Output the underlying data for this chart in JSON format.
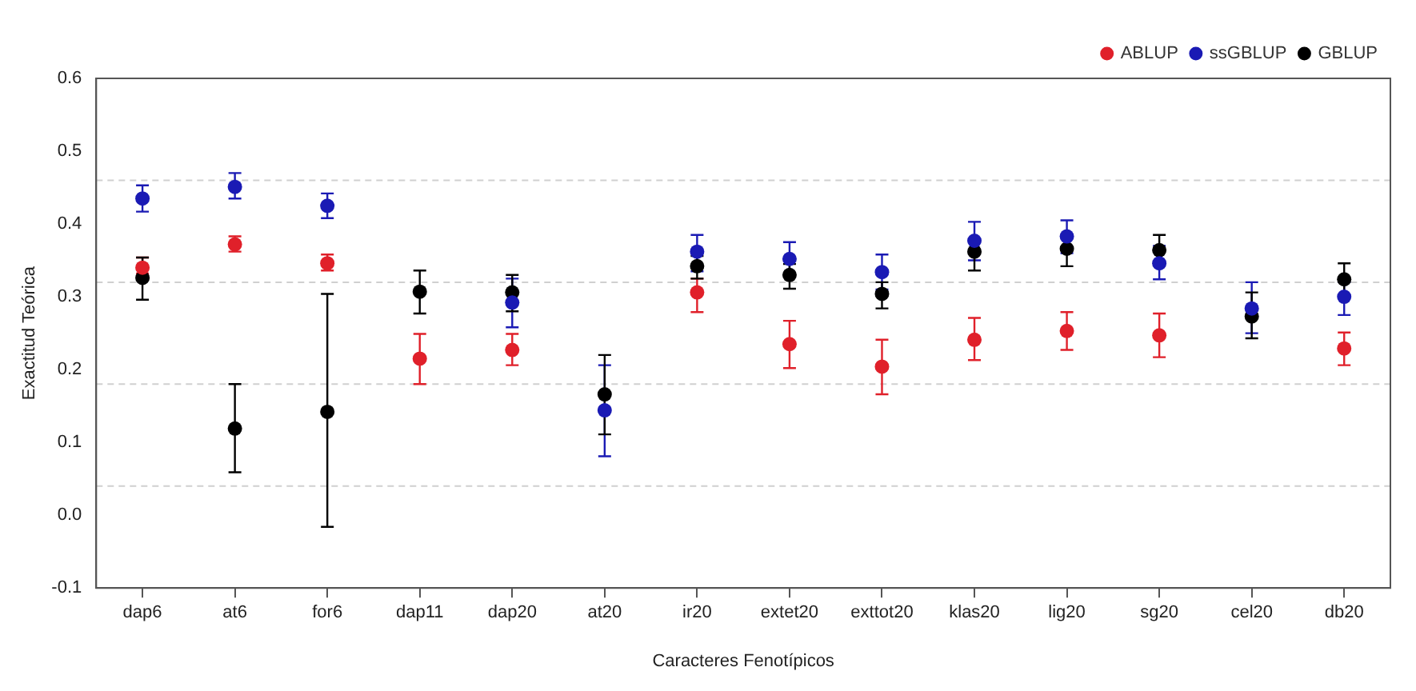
{
  "chart_data": {
    "type": "scatter",
    "xlabel": "Caracteres Fenotípicos",
    "ylabel": "Exactitud Teórica",
    "categories": [
      "dap6",
      "at6",
      "for6",
      "dap11",
      "dap20",
      "at20",
      "ir20",
      "extet20",
      "exttot20",
      "klas20",
      "lig20",
      "sg20",
      "cel20",
      "db20"
    ],
    "series": [
      {
        "name": "ABLUP",
        "color": "#e0202a",
        "values": [
          0.34,
          0.372,
          0.346,
          0.215,
          0.227,
          null,
          0.306,
          0.235,
          0.204,
          0.241,
          0.253,
          0.247,
          null,
          0.229
        ],
        "errors": [
          [
            0.332,
            0.354
          ],
          [
            0.362,
            0.383
          ],
          [
            0.336,
            0.358
          ],
          [
            0.18,
            0.249
          ],
          [
            0.206,
            0.249
          ],
          null,
          [
            0.279,
            0.325
          ],
          [
            0.202,
            0.267
          ],
          [
            0.166,
            0.241
          ],
          [
            0.213,
            0.271
          ],
          [
            0.227,
            0.279
          ],
          [
            0.217,
            0.277
          ],
          null,
          [
            0.206,
            0.251
          ]
        ]
      },
      {
        "name": "ssGBLUP",
        "color": "#1a1ab4",
        "values": [
          0.435,
          0.451,
          0.425,
          null,
          0.292,
          0.144,
          0.362,
          0.352,
          0.334,
          0.377,
          0.383,
          0.346,
          0.284,
          0.3
        ],
        "errors": [
          [
            0.417,
            0.453
          ],
          [
            0.435,
            0.47
          ],
          [
            0.408,
            0.442
          ],
          null,
          [
            0.258,
            0.325
          ],
          [
            0.081,
            0.206
          ],
          [
            0.335,
            0.385
          ],
          [
            0.33,
            0.375
          ],
          [
            0.31,
            0.358
          ],
          [
            0.35,
            0.403
          ],
          [
            0.36,
            0.405
          ],
          [
            0.324,
            0.37
          ],
          [
            0.25,
            0.32
          ],
          [
            0.275,
            0.32
          ]
        ]
      },
      {
        "name": "GBLUP",
        "color": "#000000",
        "values": [
          0.326,
          0.119,
          0.142,
          0.307,
          0.306,
          0.166,
          0.342,
          0.33,
          0.304,
          0.362,
          0.366,
          0.364,
          0.273,
          0.324
        ],
        "errors": [
          [
            0.296,
            0.354
          ],
          [
            0.059,
            0.18
          ],
          [
            -0.016,
            0.304
          ],
          [
            0.277,
            0.336
          ],
          [
            0.28,
            0.33
          ],
          [
            0.111,
            0.22
          ],
          [
            0.325,
            0.356
          ],
          [
            0.311,
            0.345
          ],
          [
            0.284,
            0.32
          ],
          [
            0.336,
            0.38
          ],
          [
            0.342,
            0.385
          ],
          [
            0.345,
            0.385
          ],
          [
            0.243,
            0.306
          ],
          [
            0.3,
            0.346
          ]
        ]
      }
    ],
    "ylim": [
      -0.1,
      0.6
    ],
    "yticks": [
      -0.1,
      {
        "value": 0,
        "label": "0.0"
      },
      0.1,
      0.2,
      0.3,
      0.4,
      0.5,
      0.6
    ],
    "ref_lines": [
      {
        "axis": "y",
        "value": 0.46,
        "color": "#d0d0d0",
        "line_style": "dashed"
      },
      {
        "axis": "y",
        "value": 0.32,
        "color": "#d0d0d0",
        "line_style": "dashed"
      },
      {
        "axis": "y",
        "value": 0.18,
        "color": "#d0d0d0",
        "line_style": "dashed"
      },
      {
        "axis": "y",
        "value": 0.04,
        "color": "#d0d0d0",
        "line_style": "dashed"
      }
    ],
    "marker": "circle",
    "legend": "top right"
  }
}
